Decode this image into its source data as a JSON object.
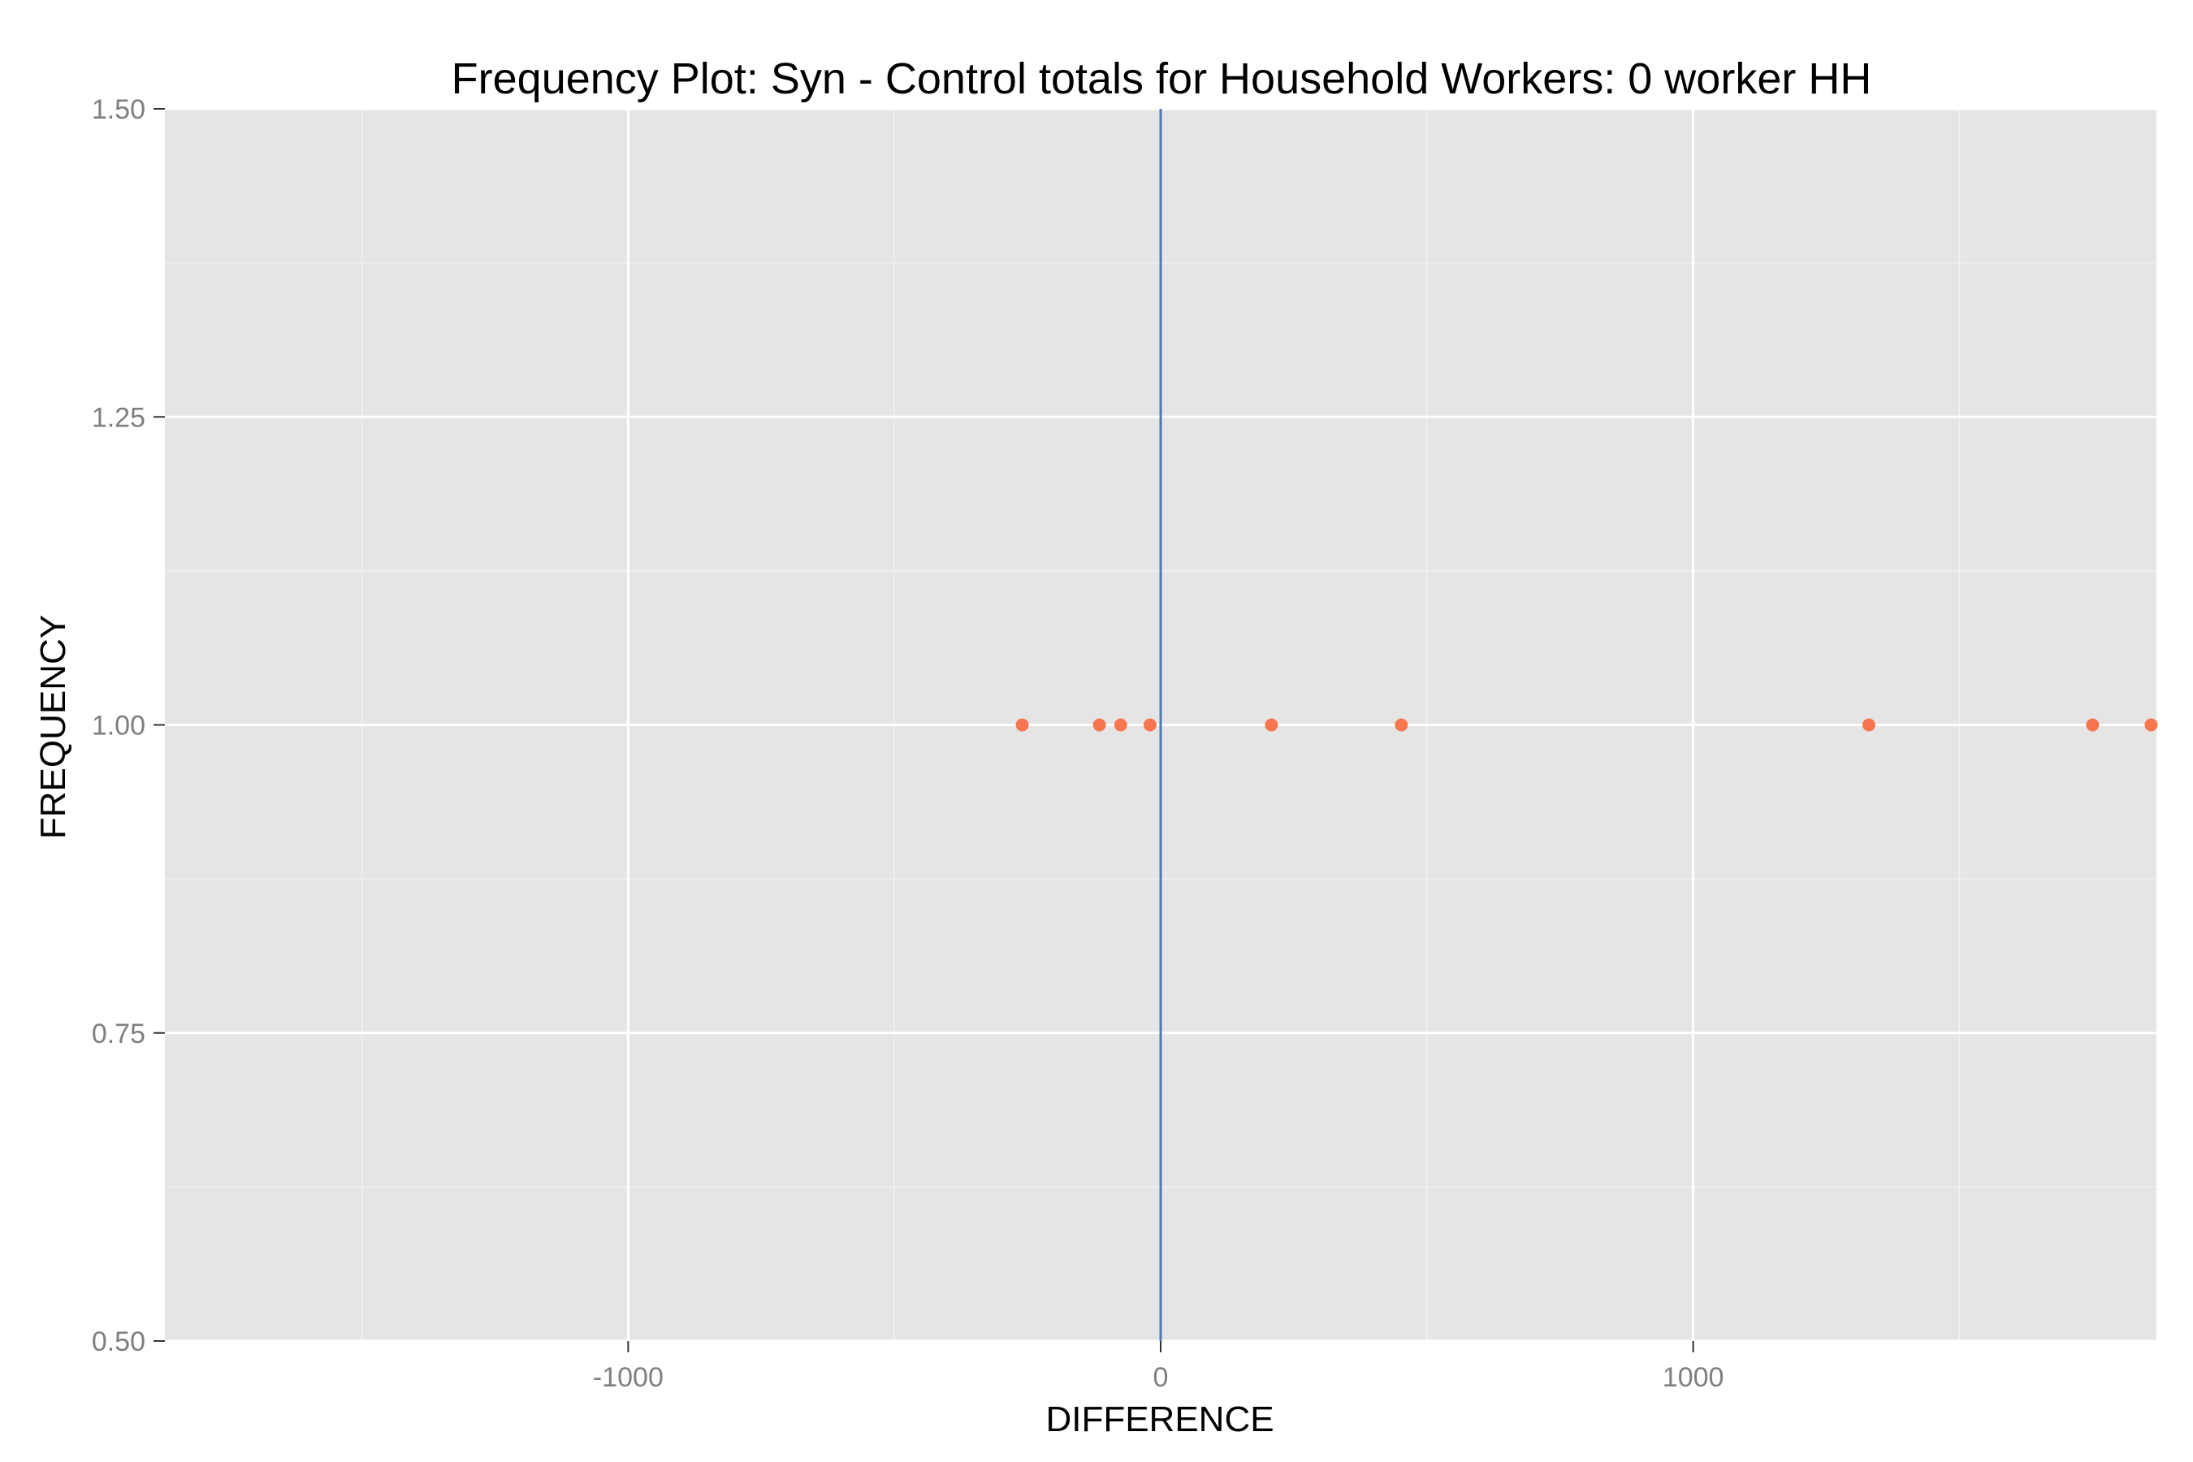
{
  "chart_data": {
    "type": "scatter",
    "title": "Frequency Plot: Syn - Control totals for Household Workers: 0 worker HH",
    "xlabel": "DIFFERENCE",
    "ylabel": "FREQUENCY",
    "xlim": [
      -1870,
      1870
    ],
    "ylim": [
      0.5,
      1.5
    ],
    "x_ticks": [
      -1000,
      0,
      1000
    ],
    "x_tick_labels": [
      "-1000",
      "0",
      "1000"
    ],
    "y_ticks": [
      0.5,
      0.75,
      1.0,
      1.25,
      1.5
    ],
    "y_tick_labels": [
      "0.50",
      "0.75",
      "1.00",
      "1.25",
      "1.50"
    ],
    "x_minor_ticks": [
      -1500,
      -500,
      500,
      1500
    ],
    "y_minor_ticks": [
      0.625,
      0.875,
      1.125,
      1.375
    ],
    "grid": true,
    "panel_background": "#e5e5e5",
    "grid_color": "#ffffff",
    "point_color": "#f8764f",
    "reference_line": {
      "x": 0,
      "color": "#4a7bb7"
    },
    "points": [
      {
        "x": -260,
        "y": 1
      },
      {
        "x": -115,
        "y": 1
      },
      {
        "x": -75,
        "y": 1
      },
      {
        "x": -20,
        "y": 1
      },
      {
        "x": 208,
        "y": 1
      },
      {
        "x": 452,
        "y": 1
      },
      {
        "x": 1330,
        "y": 1
      },
      {
        "x": 1750,
        "y": 1
      },
      {
        "x": 1860,
        "y": 1
      }
    ]
  }
}
